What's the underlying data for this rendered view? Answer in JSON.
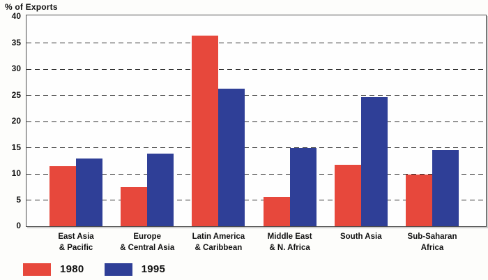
{
  "chart_data": {
    "type": "bar",
    "axis_label": "% of Exports",
    "categories": [
      [
        "East Asia",
        "& Pacific"
      ],
      [
        "Europe",
        "& Central Asia"
      ],
      [
        "Latin America",
        "& Caribbean"
      ],
      [
        "Middle East",
        "& N. Africa"
      ],
      [
        "South Asia"
      ],
      [
        "Sub-Saharan",
        "Africa"
      ]
    ],
    "series": [
      {
        "name": "1980",
        "color": "#e7483c",
        "values": [
          11.5,
          7.5,
          36.4,
          5.6,
          11.8,
          9.9
        ]
      },
      {
        "name": "1995",
        "color": "#2f3f97",
        "values": [
          12.9,
          13.9,
          26.3,
          14.9,
          24.7,
          14.5
        ]
      }
    ],
    "ylim": [
      0,
      40
    ],
    "yticks": [
      0,
      5,
      10,
      15,
      20,
      25,
      30,
      35,
      40
    ],
    "grid": "horizontal-dashed",
    "legend_position": "bottom-left",
    "colors": {
      "bar_1980": "#e7483c",
      "bar_1995": "#2f3f97",
      "grid": "#2e2e2e",
      "frame": "#4a4a4a"
    }
  }
}
